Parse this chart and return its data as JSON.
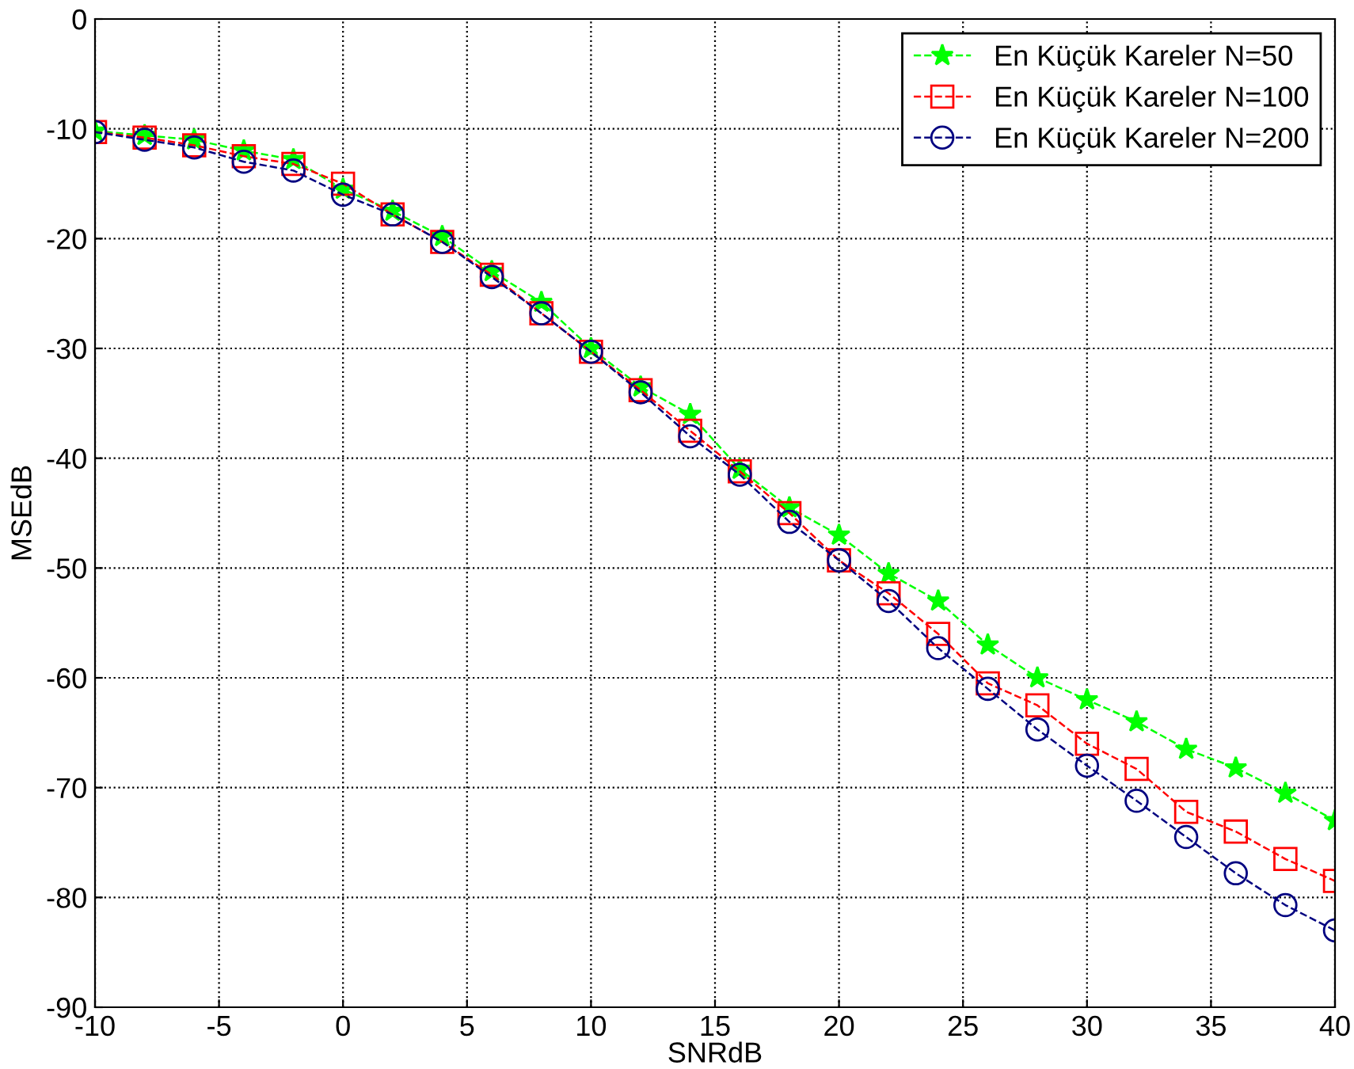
{
  "chart_data": {
    "type": "line",
    "xlabel": "SNRdB",
    "ylabel": "MSEdB",
    "x": [
      -10,
      -8,
      -6,
      -4,
      -2,
      0,
      2,
      4,
      6,
      8,
      10,
      12,
      14,
      16,
      18,
      20,
      22,
      24,
      26,
      28,
      30,
      32,
      34,
      36,
      38,
      40
    ],
    "series": [
      {
        "name": "En Küçük Kareler N=50",
        "color": "#00ff00",
        "marker": "star",
        "values": [
          -10.2,
          -10.6,
          -11,
          -12,
          -12.8,
          -15.5,
          -17.5,
          -19.8,
          -23,
          -25.8,
          -30,
          -33.5,
          -36,
          -41,
          -44.5,
          -47,
          -50.5,
          -53,
          -57,
          -60,
          -62,
          -64,
          -66.5,
          -68.2,
          -70.5,
          -73
        ]
      },
      {
        "name": "En Küçük Kareler N=100",
        "color": "#ff0000",
        "marker": "square",
        "values": [
          -10.3,
          -10.8,
          -11.5,
          -12.5,
          -13.2,
          -15,
          -17.8,
          -20.3,
          -23.3,
          -26.8,
          -30.3,
          -33.8,
          -37.5,
          -41.2,
          -45,
          -49.3,
          -52.3,
          -56,
          -60.5,
          -62.5,
          -66,
          -68.3,
          -72.2,
          -74,
          -76.5,
          -78.5
        ]
      },
      {
        "name": "En Küçük Kareler N=200",
        "color": "#000080",
        "marker": "circle",
        "values": [
          -10.3,
          -11,
          -11.7,
          -13,
          -13.8,
          -16,
          -17.8,
          -20.3,
          -23.5,
          -26.8,
          -30.3,
          -34,
          -38,
          -41.5,
          -45.8,
          -49.3,
          -53,
          -57.3,
          -61,
          -64.7,
          -68,
          -71.2,
          -74.5,
          -77.8,
          -80.7,
          -83
        ]
      }
    ],
    "line_style": "dashed",
    "xlim": [
      -10,
      40
    ],
    "ylim": [
      -90,
      0
    ],
    "xticks": [
      -10,
      -5,
      0,
      5,
      10,
      15,
      20,
      25,
      30,
      35,
      40
    ],
    "yticks": [
      -90,
      -80,
      -70,
      -60,
      -50,
      -40,
      -30,
      -20,
      -10,
      0
    ],
    "grid": true,
    "legend": "top right"
  }
}
